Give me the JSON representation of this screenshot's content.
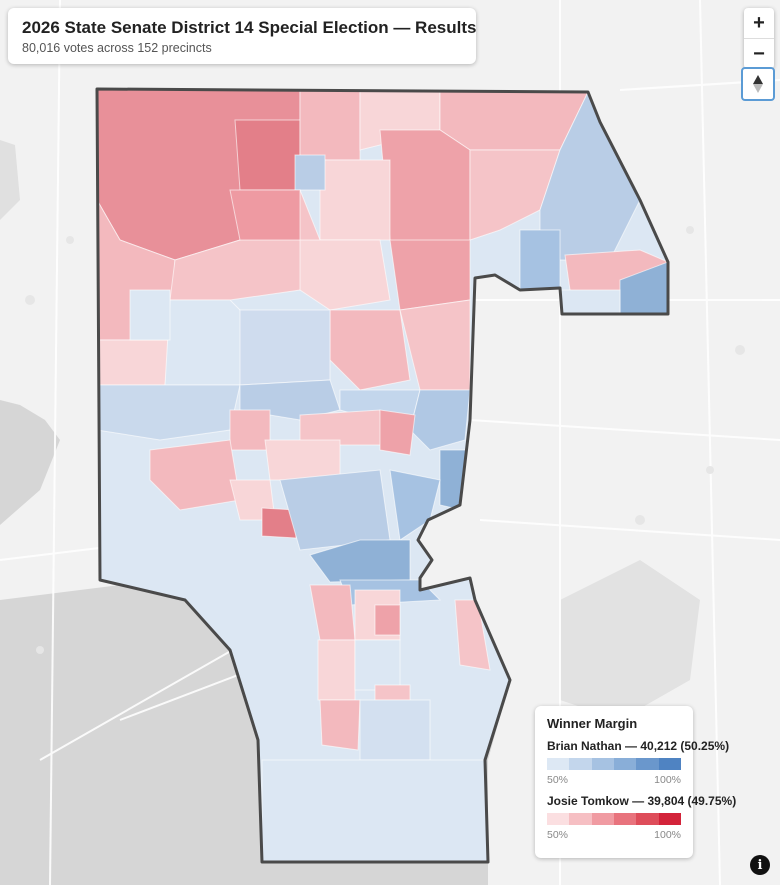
{
  "title": "2026 State Senate District 14 Special Election — Results",
  "subtitle": "80,016 votes across 152 precincts",
  "controls": {
    "zoom_in": "+",
    "zoom_out": "−"
  },
  "legend": {
    "title": "Winner Margin",
    "candidate_a": {
      "label": "Brian Nathan — 40,212 (50.25%)",
      "low": "50%",
      "high": "100%",
      "ramp": [
        "#dde8f4",
        "#c3d6ec",
        "#a6c2e2",
        "#89aed8",
        "#6a97cc",
        "#4f83c2"
      ]
    },
    "candidate_b": {
      "label": "Josie Tomkow — 39,804 (49.75%)",
      "low": "50%",
      "high": "100%",
      "ramp": [
        "#fbdfe1",
        "#f6bfc3",
        "#f09ba2",
        "#e8737d",
        "#de4d5a",
        "#d3233a"
      ]
    }
  },
  "icons": {
    "info": "info-icon",
    "compass": "compass-icon"
  },
  "colors": {
    "land": "#f2f2f2",
    "water": "#d6d6d6",
    "district_border": "#4a4a4a",
    "red_strong": "#e89099",
    "red_mid": "#f3b9be",
    "red_light": "#f8d6d8",
    "blue_strong": "#8fb1d6",
    "blue_mid": "#b9cde6",
    "blue_light": "#dce7f3"
  }
}
